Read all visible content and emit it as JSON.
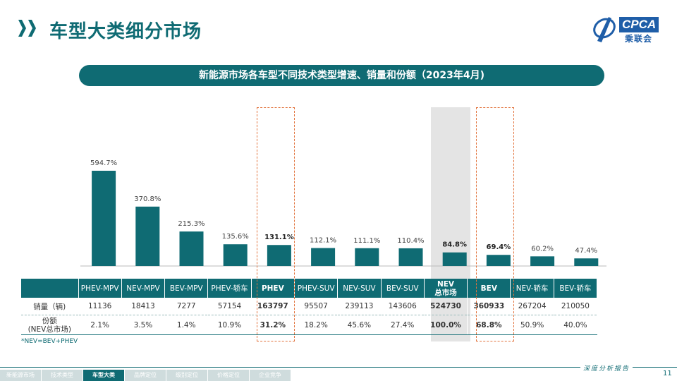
{
  "header": {
    "title": "车型大类细分市场",
    "logo_text": "CPCA",
    "logo_cn": "乘联会"
  },
  "banner": "新能源市场各车型不同技术类型增速、销量和份额（2023年4月)",
  "colors": {
    "accent": "#0f6b73",
    "highlight_box": "#e2733c",
    "gray_band": "#e4e4e4"
  },
  "chart_data": {
    "type": "bar",
    "title": "新能源市场各车型不同技术类型增速、销量和份额（2023年4月)",
    "categories": [
      "PHEV-MPV",
      "NEV-MPV",
      "BEV-MPV",
      "PHEV-轿车",
      "PHEV",
      "PHEV-SUV",
      "NEV-SUV",
      "BEV-SUV",
      "NEV\n总市场",
      "BEV",
      "NEV-轿车",
      "BEV-轿车"
    ],
    "series": [
      {
        "name": "增速",
        "values": [
          594.7,
          370.8,
          215.3,
          135.6,
          131.1,
          112.1,
          111.1,
          110.4,
          84.8,
          69.4,
          60.2,
          47.4
        ]
      }
    ],
    "data_labels": [
      "594.7%",
      "370.8%",
      "215.3%",
      "135.6%",
      "131.1%",
      "112.1%",
      "111.1%",
      "110.4%",
      "84.8%",
      "69.4%",
      "60.2%",
      "47.4%"
    ],
    "bold_labels": [
      4,
      8,
      9
    ],
    "highlighted": [
      4,
      9
    ],
    "shaded": [
      8
    ],
    "ylim": [
      0,
      600
    ],
    "xlabel": "",
    "ylabel": ""
  },
  "table": {
    "rows": [
      {
        "label": "销量（辆)",
        "values": [
          "11136",
          "18413",
          "7277",
          "57154",
          "163797",
          "95507",
          "239113",
          "143606",
          "524730",
          "360933",
          "267204",
          "210050"
        ]
      },
      {
        "label": "份额\n(NEV总市场)",
        "values": [
          "2.1%",
          "3.5%",
          "1.4%",
          "10.9%",
          "31.2%",
          "18.2%",
          "45.6%",
          "27.4%",
          "100.0%",
          "68.8%",
          "50.9%",
          "40.0%"
        ]
      }
    ]
  },
  "note": "*NEV=BEV+PHEV",
  "footer": {
    "nav": [
      "新能源市场",
      "技术类型",
      "车型大类",
      "品牌定位",
      "级别定位",
      "价格定位",
      "企业竞争"
    ],
    "active_index": 2,
    "report": "深度分析报告",
    "page": "11"
  }
}
